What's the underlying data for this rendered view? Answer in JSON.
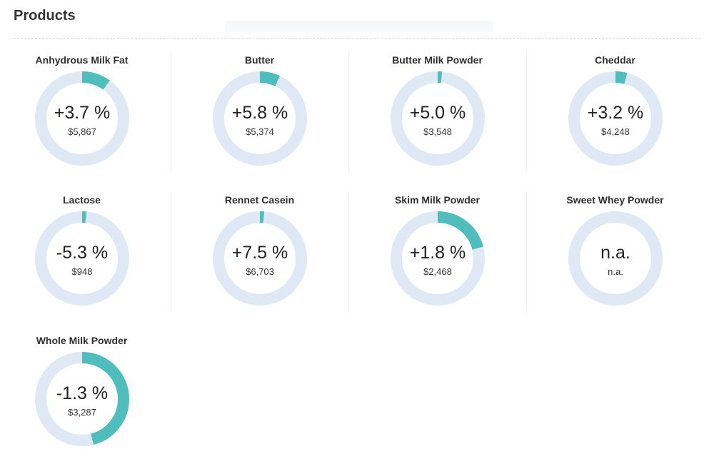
{
  "page": {
    "title": "Products"
  },
  "colors": {
    "track": "#dfe8f5",
    "fill": "#4fbdbb",
    "text": "#222222"
  },
  "products": [
    {
      "name": "Anhydrous Milk Fat",
      "change": "+3.7 %",
      "price": "$5,867",
      "fill_fraction": 0.1
    },
    {
      "name": "Butter",
      "change": "+5.8 %",
      "price": "$5,374",
      "fill_fraction": 0.07
    },
    {
      "name": "Butter Milk Powder",
      "change": "+5.0 %",
      "price": "$3,548",
      "fill_fraction": 0.015
    },
    {
      "name": "Cheddar",
      "change": "+3.2 %",
      "price": "$4,248",
      "fill_fraction": 0.04
    },
    {
      "name": "Lactose",
      "change": "-5.3 %",
      "price": "$948",
      "fill_fraction": 0.015
    },
    {
      "name": "Rennet Casein",
      "change": "+7.5 %",
      "price": "$6,703",
      "fill_fraction": 0.015
    },
    {
      "name": "Skim Milk Powder",
      "change": "+1.8 %",
      "price": "$2,468",
      "fill_fraction": 0.21
    },
    {
      "name": "Sweet Whey Powder",
      "change": "n.a.",
      "price": "n.a.",
      "fill_fraction": 0
    },
    {
      "name": "Whole Milk Powder",
      "change": "-1.3 %",
      "price": "$3,287",
      "fill_fraction": 0.46
    }
  ]
}
